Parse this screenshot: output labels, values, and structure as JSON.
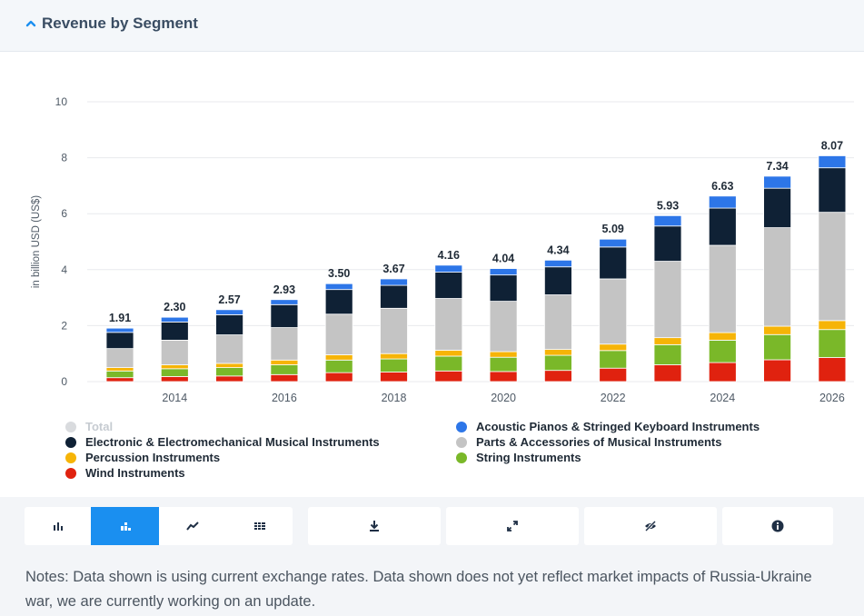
{
  "header": {
    "title": "Revenue by Segment"
  },
  "chart_data": {
    "type": "bar",
    "stacked": true,
    "ylabel": "in billion USD (US$)",
    "ylim": [
      0,
      10
    ],
    "yticks": [
      0,
      2,
      4,
      6,
      8,
      10
    ],
    "x": [
      2013,
      2014,
      2015,
      2016,
      2017,
      2018,
      2019,
      2020,
      2021,
      2022,
      2023,
      2024,
      2025,
      2026
    ],
    "x_tick_labels": [
      "",
      "2014",
      "",
      "2016",
      "",
      "2018",
      "",
      "2020",
      "",
      "2022",
      "",
      "2024",
      "",
      "2026"
    ],
    "totals": [
      "1.91",
      "2.30",
      "2.57",
      "2.93",
      "3.50",
      "3.67",
      "4.16",
      "4.04",
      "4.34",
      "5.09",
      "5.93",
      "6.63",
      "7.34",
      "8.07"
    ],
    "legend_total": {
      "name": "Total",
      "color": "#d9dbde"
    },
    "series": [
      {
        "name": "Wind Instruments",
        "color": "#e0220f",
        "values": [
          0.14,
          0.18,
          0.2,
          0.25,
          0.32,
          0.34,
          0.38,
          0.36,
          0.4,
          0.48,
          0.6,
          0.68,
          0.78,
          0.86
        ]
      },
      {
        "name": "String Instruments",
        "color": "#7ab829",
        "values": [
          0.24,
          0.28,
          0.3,
          0.35,
          0.45,
          0.47,
          0.53,
          0.51,
          0.54,
          0.63,
          0.72,
          0.8,
          0.9,
          1.0
        ]
      },
      {
        "name": "Percussion Instruments",
        "color": "#f6b407",
        "values": [
          0.12,
          0.14,
          0.15,
          0.17,
          0.19,
          0.19,
          0.21,
          0.2,
          0.21,
          0.23,
          0.25,
          0.27,
          0.3,
          0.32
        ]
      },
      {
        "name": "Parts & Accessories of Musical Instruments",
        "color": "#c4c4c4",
        "values": [
          0.68,
          0.88,
          1.02,
          1.16,
          1.45,
          1.62,
          1.85,
          1.8,
          1.95,
          2.33,
          2.73,
          3.12,
          3.52,
          3.87
        ]
      },
      {
        "name": "Electronic & Electromechanical Musical Instruments",
        "color": "#0f2135",
        "values": [
          0.58,
          0.65,
          0.72,
          0.82,
          0.88,
          0.82,
          0.94,
          0.94,
          1.0,
          1.14,
          1.26,
          1.33,
          1.41,
          1.59
        ]
      },
      {
        "name": "Acoustic Pianos & Stringed Keyboard Instruments",
        "color": "#2d76e8",
        "values": [
          0.15,
          0.17,
          0.18,
          0.18,
          0.21,
          0.23,
          0.25,
          0.23,
          0.24,
          0.28,
          0.37,
          0.43,
          0.43,
          0.43
        ]
      }
    ]
  },
  "legend": {
    "left": [
      {
        "label": "Total",
        "color": "#d9dbde",
        "muted": true
      },
      {
        "label": "Electronic & Electromechanical Musical Instruments",
        "color": "#0f2135"
      },
      {
        "label": "Percussion Instruments",
        "color": "#f6b407"
      },
      {
        "label": "Wind Instruments",
        "color": "#e0220f"
      }
    ],
    "right": [
      {
        "label": "Acoustic Pianos & Stringed Keyboard Instruments",
        "color": "#2d76e8"
      },
      {
        "label": "Parts & Accessories of Musical Instruments",
        "color": "#c4c4c4"
      },
      {
        "label": "String Instruments",
        "color": "#7ab829"
      }
    ]
  },
  "toolbar": {
    "groups": [
      {
        "name": "chart-type-group",
        "buttons": [
          {
            "icon": "bar-chart-icon",
            "active": false
          },
          {
            "icon": "stacked-bar-chart-icon",
            "active": true
          },
          {
            "icon": "line-chart-icon",
            "active": false
          },
          {
            "icon": "table-icon",
            "active": false
          }
        ]
      },
      {
        "name": "download-group",
        "buttons": [
          {
            "icon": "download-icon",
            "active": false
          }
        ]
      },
      {
        "name": "fullscreen-group",
        "buttons": [
          {
            "icon": "expand-icon",
            "active": false
          }
        ]
      },
      {
        "name": "hide-group",
        "buttons": [
          {
            "icon": "eye-off-icon",
            "active": false
          }
        ]
      },
      {
        "name": "info-group",
        "buttons": [
          {
            "icon": "info-icon",
            "active": false
          }
        ]
      }
    ],
    "accent": "#1a8ff0"
  },
  "notes": "Notes: Data shown is using current exchange rates. Data shown does not yet reflect market impacts of Russia-Ukraine war, we are currently working on an update."
}
